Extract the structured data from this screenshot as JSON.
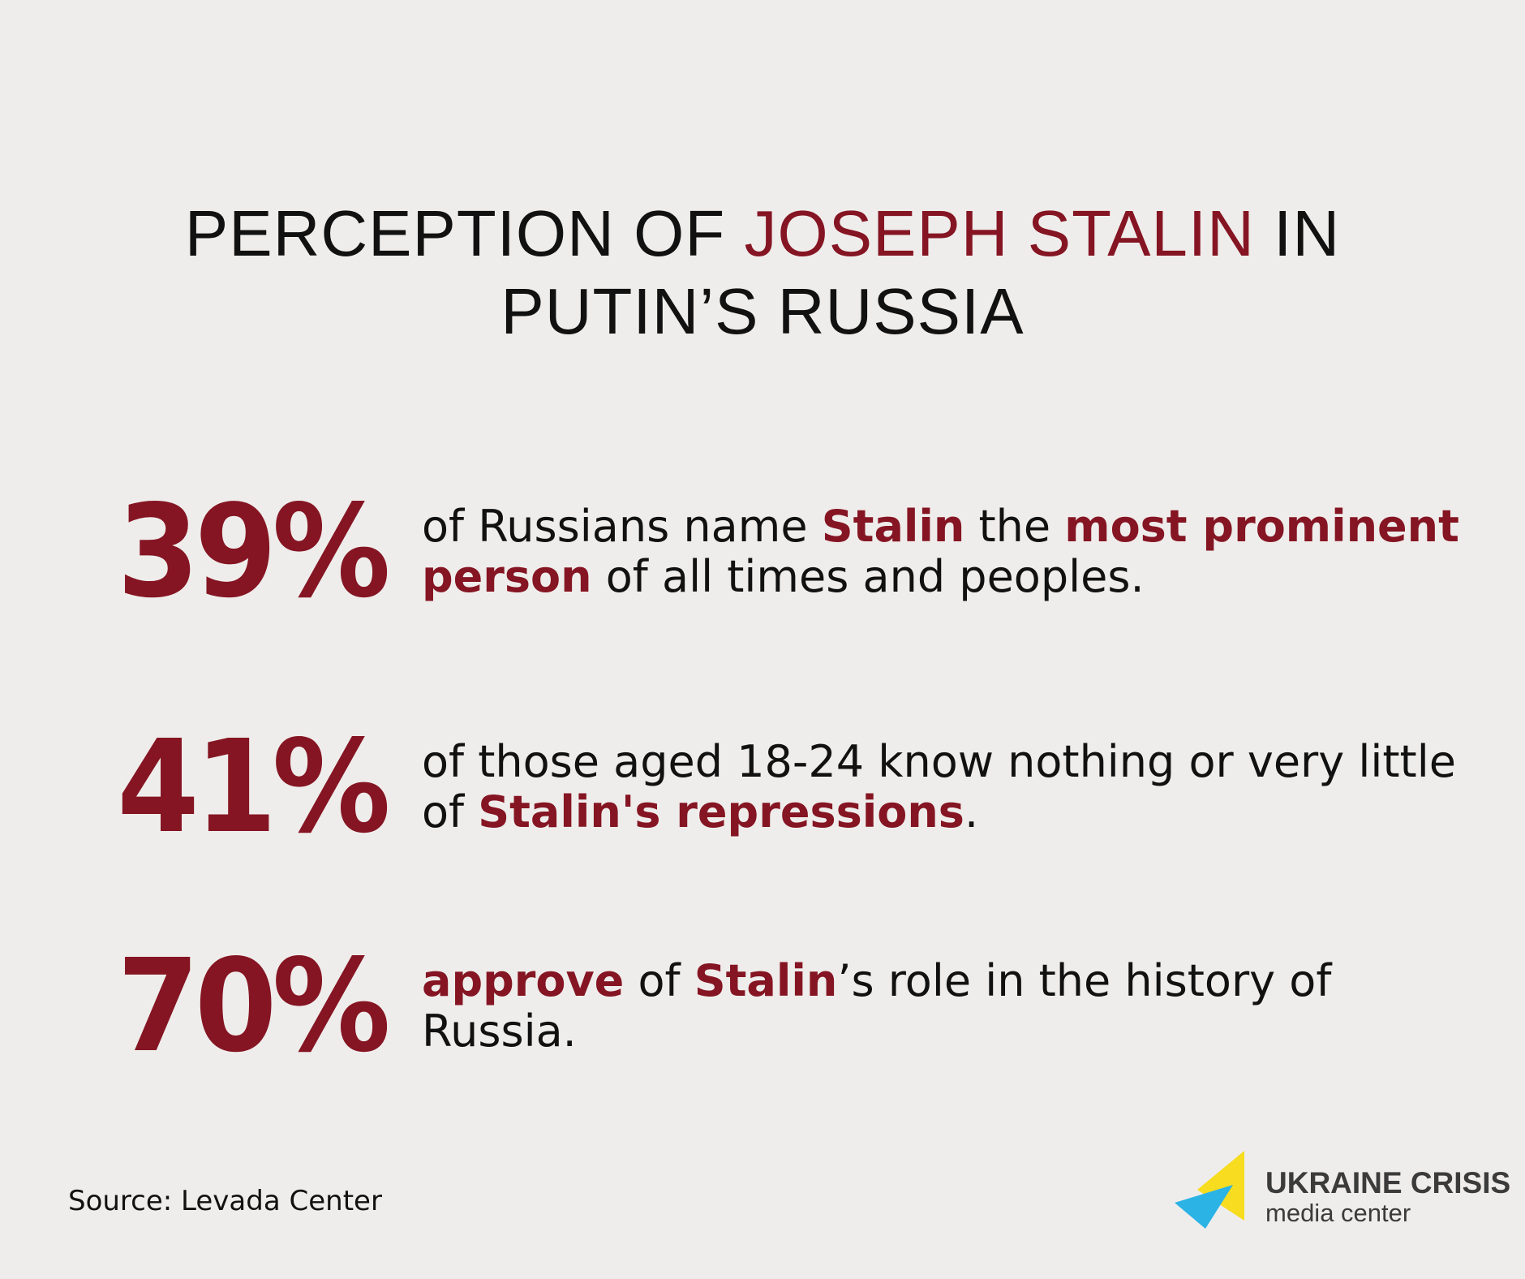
{
  "title": {
    "prefix": "PERCEPTION OF ",
    "accent": "JOSEPH STALIN",
    "suffix_line1": " IN",
    "line2": "PUTIN’S RUSSIA"
  },
  "stats": [
    {
      "percent": "39%",
      "parts": [
        {
          "text": "of Russians name "
        },
        {
          "text": "Stalin",
          "highlight": true
        },
        {
          "text": " the "
        },
        {
          "text": "most prominent person",
          "highlight": true
        },
        {
          "text": " of all times and peoples."
        }
      ]
    },
    {
      "percent": "41%",
      "parts": [
        {
          "text": "of those aged 18-24 know nothing or very little of "
        },
        {
          "text": "Stalin's repressions",
          "highlight": true
        },
        {
          "text": "."
        }
      ]
    },
    {
      "percent": "70%",
      "parts": [
        {
          "text": "approve",
          "highlight": true
        },
        {
          "text": " of "
        },
        {
          "text": "Stalin",
          "highlight": true
        },
        {
          "text": "’s role in the history of Russia."
        }
      ]
    }
  ],
  "source": "Source: Levada Center",
  "logo": {
    "line1": "UKRAINE CRISIS",
    "line2": "media center",
    "colors": {
      "yellow": "#f7dc1f",
      "blue": "#2bb3e6",
      "text": "#3b3b3b"
    }
  },
  "colors": {
    "accent": "#851523",
    "background": "#efedeb",
    "text": "#111111"
  }
}
